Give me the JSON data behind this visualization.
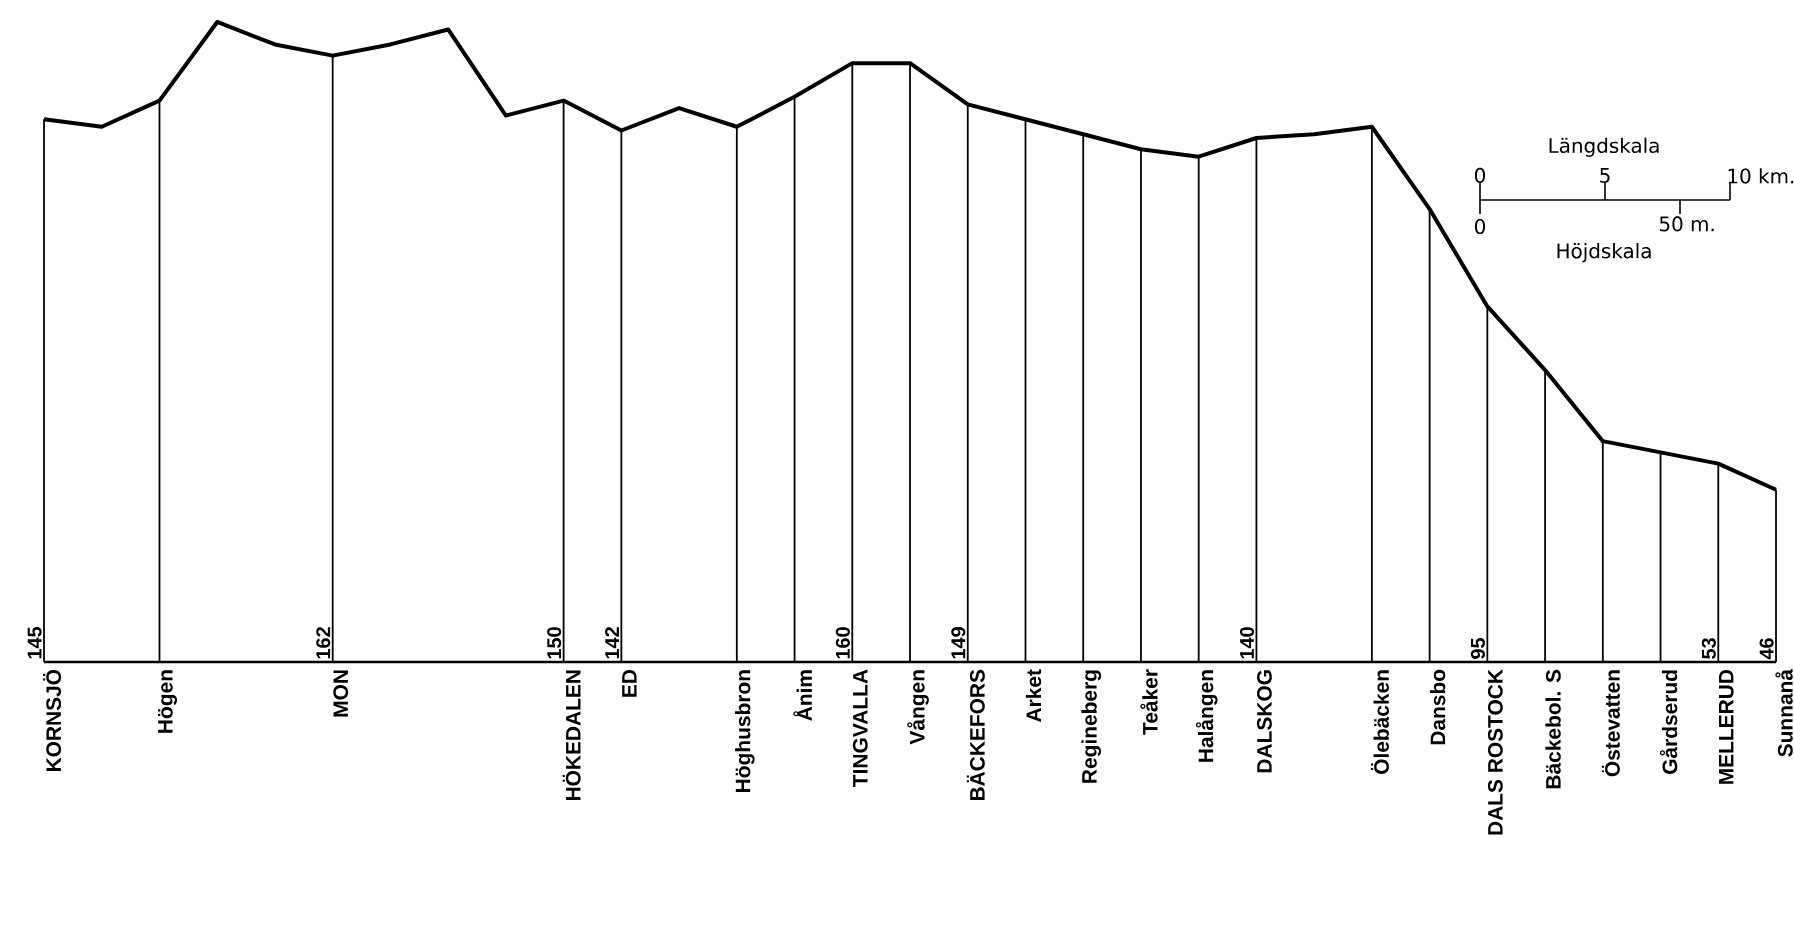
{
  "chart_data": {
    "type": "line",
    "marker": "none",
    "line_style": "solid",
    "tick_labels": "x",
    "categories": [
      "KORNSJÖ",
      null,
      "Högen",
      null,
      null,
      "MON",
      null,
      null,
      null,
      "HÖKEDALEN",
      "ED",
      null,
      "Höghusbron",
      "Ånim",
      "TINGVALLA",
      "Vången",
      "BÄCKEFORS",
      "Arket",
      "Regineberg",
      "Teåker",
      "Halången",
      "DALSKOG",
      null,
      "Ölebäcken",
      "Dansbo",
      "DALS ROSTOCK",
      "Bäckebol. S",
      "Östevatten",
      "Gårdserud",
      "MELLERUD",
      "Sunnanå"
    ],
    "series": [
      {
        "color": "#000000",
        "values": [
          145,
          143,
          150,
          171,
          165,
          162,
          165,
          169,
          146,
          150,
          142,
          148,
          143,
          151,
          160,
          160,
          149,
          145,
          141,
          137,
          135,
          140,
          141,
          143,
          121,
          95,
          78,
          59,
          56,
          53,
          46
        ]
      },
      {
        "type": "bar",
        "color": "#000000",
        "values": [
          145,
          null,
          150,
          null,
          null,
          162,
          null,
          null,
          null,
          150,
          142,
          null,
          143,
          151,
          160,
          160,
          149,
          145,
          141,
          137,
          135,
          140,
          null,
          143,
          121,
          95,
          78,
          59,
          56,
          53,
          46
        ],
        "value_labels": [
          "145",
          null,
          null,
          null,
          null,
          "162",
          null,
          null,
          null,
          "150",
          "142",
          null,
          null,
          null,
          "160",
          null,
          "149",
          null,
          null,
          null,
          null,
          "140",
          null,
          null,
          null,
          "95",
          null,
          null,
          null,
          "53",
          "46"
        ]
      }
    ],
    "annotations": [
      "Längdskala",
      "0",
      "5",
      "10 km.",
      "0",
      "50 m.",
      "Höjdskala"
    ]
  }
}
